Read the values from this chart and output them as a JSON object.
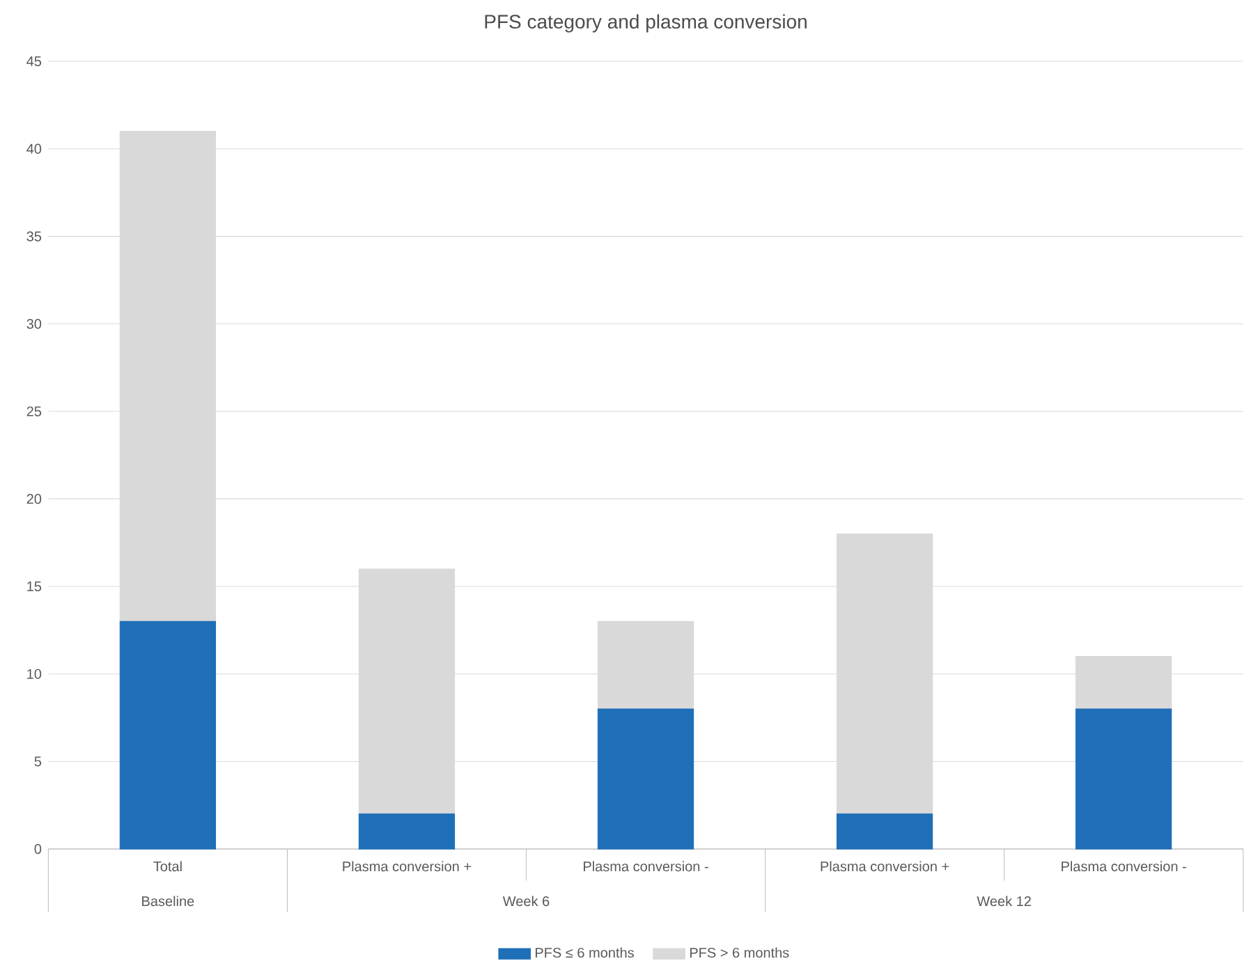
{
  "chart_data": {
    "type": "bar",
    "title": "PFS category and plasma conversion",
    "categories": [
      "Total",
      "Plasma conversion +",
      "Plasma conversion -",
      "Plasma conversion +",
      "Plasma conversion -"
    ],
    "series": [
      {
        "name": "PFS ≤ 6 months",
        "color": "#1f6fb8",
        "values": [
          13,
          2,
          8,
          2,
          8
        ]
      },
      {
        "name": "PFS > 6 months",
        "color": "#d9d9d9",
        "values": [
          28,
          14,
          5,
          16,
          3
        ]
      }
    ],
    "stacked": true,
    "ylim": [
      0,
      45
    ],
    "yticks": [
      0,
      5,
      10,
      15,
      20,
      25,
      30,
      35,
      40,
      45
    ],
    "grid": "y",
    "legend": "bottom",
    "annotations": [
      "Baseline",
      "Week 6",
      "Week 12"
    ]
  }
}
